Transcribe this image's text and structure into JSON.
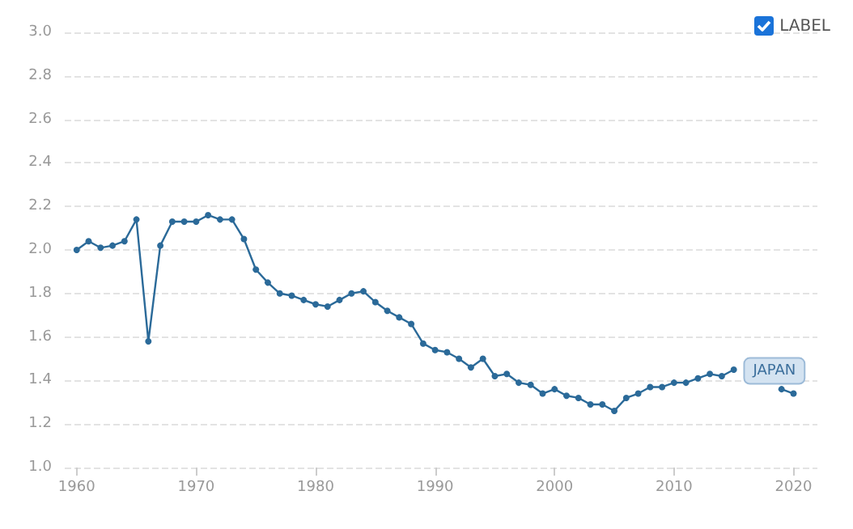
{
  "chart_data": {
    "type": "line",
    "x": [
      1960,
      1961,
      1962,
      1963,
      1964,
      1965,
      1966,
      1967,
      1968,
      1969,
      1970,
      1971,
      1972,
      1973,
      1974,
      1975,
      1976,
      1977,
      1978,
      1979,
      1980,
      1981,
      1982,
      1983,
      1984,
      1985,
      1986,
      1987,
      1988,
      1989,
      1990,
      1991,
      1992,
      1993,
      1994,
      1995,
      1996,
      1997,
      1998,
      1999,
      2000,
      2001,
      2002,
      2003,
      2004,
      2005,
      2006,
      2007,
      2008,
      2009,
      2010,
      2011,
      2012,
      2013,
      2014,
      2015,
      2016,
      2017,
      2018,
      2019,
      2020
    ],
    "series": [
      {
        "name": "JAPAN",
        "color": "#2b6a99",
        "values": [
          2.0,
          2.04,
          2.01,
          2.02,
          2.04,
          2.14,
          1.58,
          2.02,
          2.13,
          2.13,
          2.13,
          2.16,
          2.14,
          2.14,
          2.05,
          1.91,
          1.85,
          1.8,
          1.79,
          1.77,
          1.75,
          1.74,
          1.77,
          1.8,
          1.81,
          1.76,
          1.72,
          1.69,
          1.66,
          1.57,
          1.54,
          1.53,
          1.5,
          1.46,
          1.5,
          1.42,
          1.43,
          1.39,
          1.38,
          1.34,
          1.36,
          1.33,
          1.32,
          1.29,
          1.29,
          1.26,
          1.32,
          1.34,
          1.37,
          1.37,
          1.39,
          1.39,
          1.41,
          1.43,
          1.42,
          1.45,
          null,
          null,
          null,
          1.36,
          1.34
        ]
      }
    ],
    "xlim": [
      1959,
      2022
    ],
    "xticks": [
      1960,
      1970,
      1980,
      1990,
      2000,
      2010,
      2020
    ],
    "ylim": [
      1.0,
      3.0
    ],
    "yticks": [
      {
        "value": 1.0,
        "label": "1.0"
      },
      {
        "value": 1.2,
        "label": "1.2"
      },
      {
        "value": 1.4,
        "label": "1.4"
      },
      {
        "value": 1.6,
        "label": "1.6"
      },
      {
        "value": 1.8,
        "label": "1.8"
      },
      {
        "value": 2.0,
        "label": "2.0"
      },
      {
        "value": 2.2,
        "label": "2.2"
      },
      {
        "value": 2.4,
        "label": "2.4"
      },
      {
        "value": 2.6,
        "label": "2.6"
      },
      {
        "value": 2.8,
        "label": "2.8"
      },
      {
        "value": 3.0,
        "label": "3.0"
      }
    ],
    "grid": "y",
    "marker": "circle",
    "line_style": "solid",
    "annotations": [
      "LABEL"
    ]
  }
}
